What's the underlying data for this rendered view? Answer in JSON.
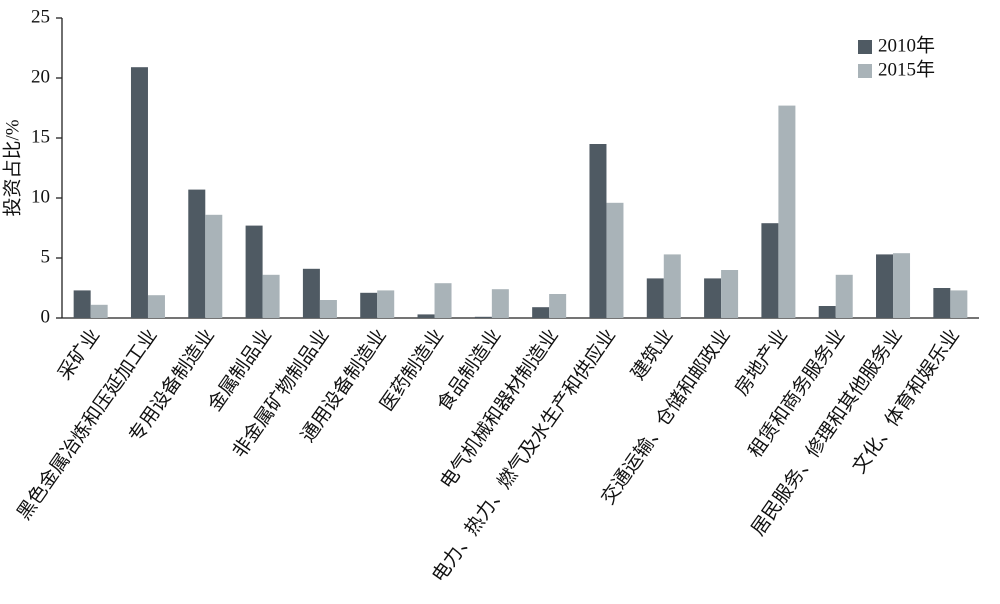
{
  "chart_data": {
    "type": "bar",
    "y_label": "投资占比/%",
    "categories": [
      "采矿业",
      "黑色金属冶炼和压延加工业",
      "专用设备制造业",
      "金属制品业",
      "非金属矿物制品业",
      "通用设备制造业",
      "医药制造业",
      "食品制造业",
      "电气机械和器材制造业",
      "电力、热力、燃气及水生产和供应业",
      "建筑业",
      "交通运输、仓储和邮政业",
      "房地产业",
      "租赁和商务服务业",
      "居民服务、修理和其他服务业",
      "文化、体育和娱乐业"
    ],
    "series": [
      {
        "name": "2010年",
        "color": "#4f5a63",
        "values": [
          2.3,
          20.9,
          10.7,
          7.7,
          4.1,
          2.1,
          0.3,
          0.1,
          0.9,
          14.5,
          3.3,
          3.3,
          7.9,
          1.0,
          5.3,
          2.5
        ]
      },
      {
        "name": "2015年",
        "color": "#a9b3b8",
        "values": [
          1.1,
          1.9,
          8.6,
          3.6,
          1.5,
          2.3,
          2.9,
          2.4,
          2.0,
          9.6,
          5.3,
          4.0,
          17.7,
          3.6,
          5.4,
          2.3
        ]
      }
    ],
    "ylim": [
      0,
      25
    ],
    "yticks": [
      0,
      5,
      10,
      15,
      20,
      25
    ],
    "legend": "upper right"
  }
}
